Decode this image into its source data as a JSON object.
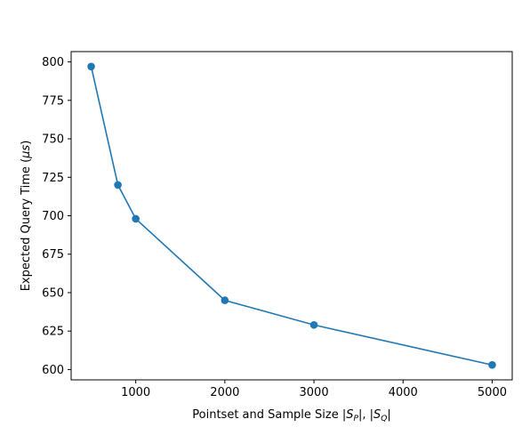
{
  "chart_data": {
    "type": "line",
    "title": "",
    "xlabel": "Pointset and Sample Size |S_P|, |S_Q|",
    "ylabel": "Expected Query Time (μs)",
    "x": [
      500,
      800,
      1000,
      2000,
      3000,
      5000
    ],
    "series": [
      {
        "values": [
          797,
          720,
          698,
          645,
          629,
          603
        ],
        "color": "#1f77b4",
        "marker": "circle"
      }
    ],
    "xlim": [
      275,
      5225
    ],
    "ylim": [
      593.3,
      806.7
    ],
    "xticks": [
      1000,
      2000,
      3000,
      4000,
      5000
    ],
    "yticks": [
      600,
      625,
      650,
      675,
      700,
      725,
      750,
      775,
      800
    ],
    "grid": false
  }
}
